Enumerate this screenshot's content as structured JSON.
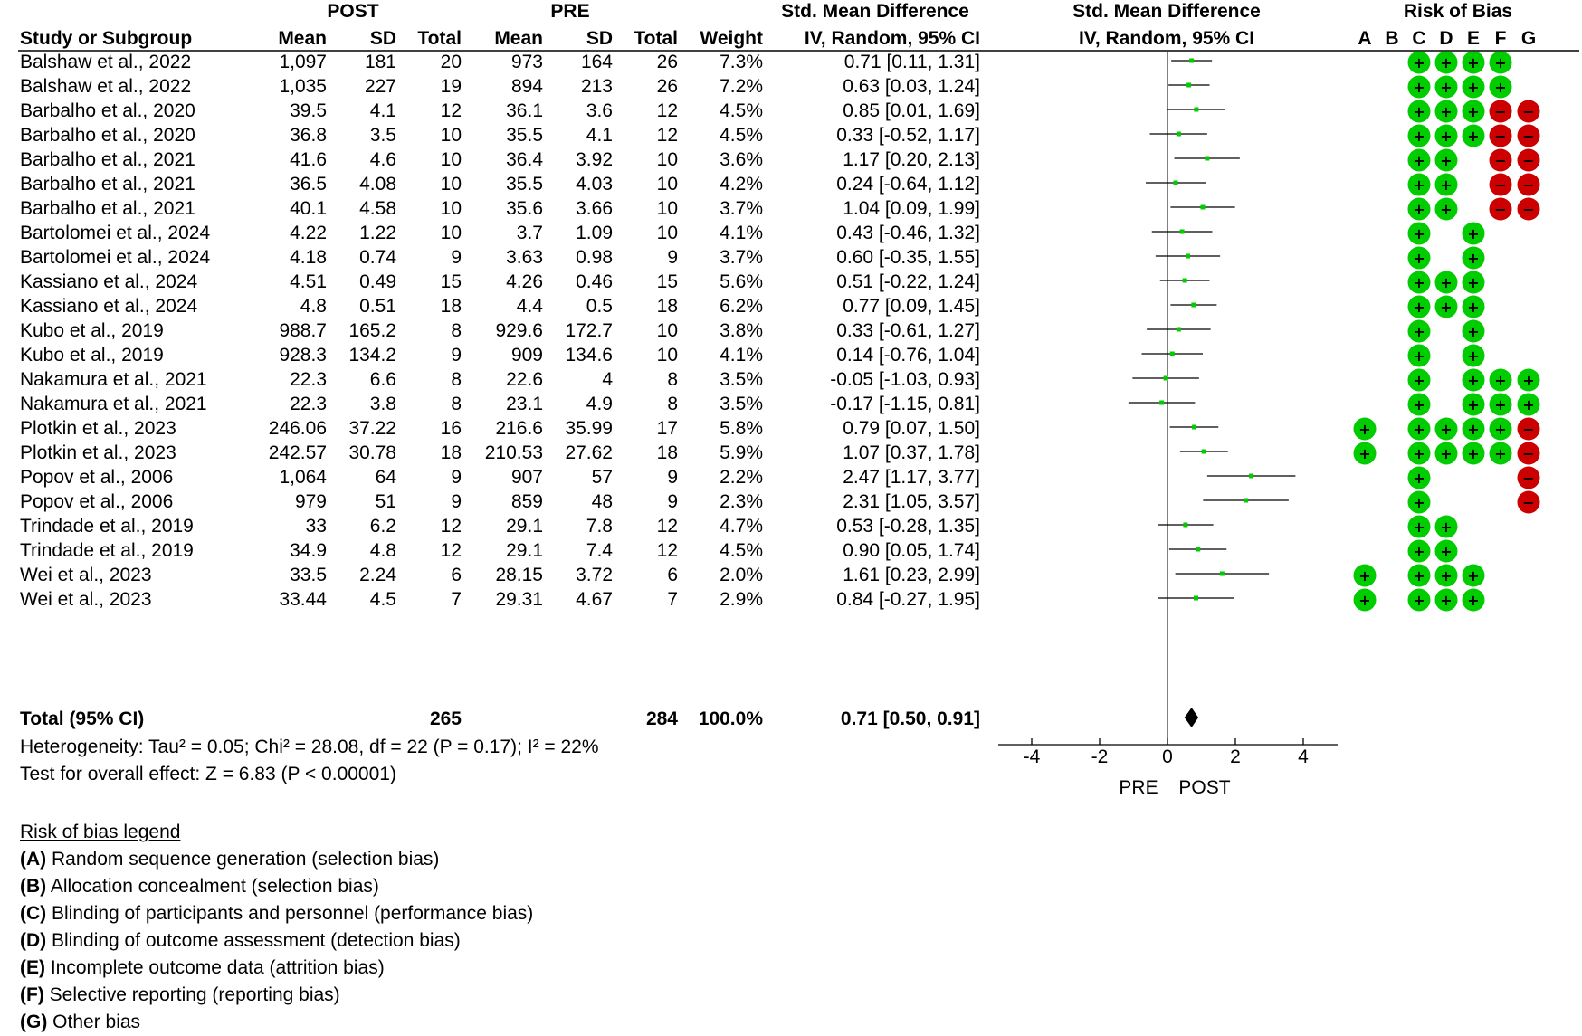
{
  "header": {
    "post_group": "POST",
    "pre_group": "PRE",
    "smd_group": "Std. Mean Difference",
    "smd_sub": "IV, Random, 95% CI",
    "plot_group": "Std. Mean Difference",
    "plot_sub": "IV, Random, 95% CI",
    "rob_group": "Risk of Bias",
    "study": "Study or Subgroup",
    "mean": "Mean",
    "sd": "SD",
    "total": "Total",
    "weight": "Weight"
  },
  "rob_letters": [
    "A",
    "B",
    "C",
    "D",
    "E",
    "F",
    "G"
  ],
  "rows": [
    {
      "study": "Balshaw et al., 2022",
      "post_mean": "1,097",
      "post_sd": "181",
      "post_total": "20",
      "pre_mean": "973",
      "pre_sd": "164",
      "pre_total": "26",
      "weight": "7.3%",
      "ci_text": "0.71 [0.11, 1.31]",
      "rob": [
        "",
        "",
        "+",
        "+",
        "+",
        "+",
        ""
      ]
    },
    {
      "study": "Balshaw et al., 2022",
      "post_mean": "1,035",
      "post_sd": "227",
      "post_total": "19",
      "pre_mean": "894",
      "pre_sd": "213",
      "pre_total": "26",
      "weight": "7.2%",
      "ci_text": "0.63 [0.03, 1.24]",
      "rob": [
        "",
        "",
        "+",
        "+",
        "+",
        "+",
        ""
      ]
    },
    {
      "study": "Barbalho et al., 2020",
      "post_mean": "39.5",
      "post_sd": "4.1",
      "post_total": "12",
      "pre_mean": "36.1",
      "pre_sd": "3.6",
      "pre_total": "12",
      "weight": "4.5%",
      "ci_text": "0.85 [0.01, 1.69]",
      "rob": [
        "",
        "",
        "+",
        "+",
        "+",
        "-",
        "-"
      ]
    },
    {
      "study": "Barbalho et al., 2020",
      "post_mean": "36.8",
      "post_sd": "3.5",
      "post_total": "10",
      "pre_mean": "35.5",
      "pre_sd": "4.1",
      "pre_total": "12",
      "weight": "4.5%",
      "ci_text": "0.33 [-0.52, 1.17]",
      "rob": [
        "",
        "",
        "+",
        "+",
        "+",
        "-",
        "-"
      ]
    },
    {
      "study": "Barbalho et al., 2021",
      "post_mean": "41.6",
      "post_sd": "4.6",
      "post_total": "10",
      "pre_mean": "36.4",
      "pre_sd": "3.92",
      "pre_total": "10",
      "weight": "3.6%",
      "ci_text": "1.17 [0.20, 2.13]",
      "rob": [
        "",
        "",
        "+",
        "+",
        "",
        "-",
        "-"
      ]
    },
    {
      "study": "Barbalho et al., 2021",
      "post_mean": "36.5",
      "post_sd": "4.08",
      "post_total": "10",
      "pre_mean": "35.5",
      "pre_sd": "4.03",
      "pre_total": "10",
      "weight": "4.2%",
      "ci_text": "0.24 [-0.64, 1.12]",
      "rob": [
        "",
        "",
        "+",
        "+",
        "",
        "-",
        "-"
      ]
    },
    {
      "study": "Barbalho et al., 2021",
      "post_mean": "40.1",
      "post_sd": "4.58",
      "post_total": "10",
      "pre_mean": "35.6",
      "pre_sd": "3.66",
      "pre_total": "10",
      "weight": "3.7%",
      "ci_text": "1.04 [0.09, 1.99]",
      "rob": [
        "",
        "",
        "+",
        "+",
        "",
        "-",
        "-"
      ]
    },
    {
      "study": "Bartolomei et al., 2024",
      "post_mean": "4.22",
      "post_sd": "1.22",
      "post_total": "10",
      "pre_mean": "3.7",
      "pre_sd": "1.09",
      "pre_total": "10",
      "weight": "4.1%",
      "ci_text": "0.43 [-0.46, 1.32]",
      "rob": [
        "",
        "",
        "+",
        "",
        "+",
        "",
        ""
      ]
    },
    {
      "study": "Bartolomei et al., 2024",
      "post_mean": "4.18",
      "post_sd": "0.74",
      "post_total": "9",
      "pre_mean": "3.63",
      "pre_sd": "0.98",
      "pre_total": "9",
      "weight": "3.7%",
      "ci_text": "0.60 [-0.35, 1.55]",
      "rob": [
        "",
        "",
        "+",
        "",
        "+",
        "",
        ""
      ]
    },
    {
      "study": "Kassiano et al., 2024",
      "post_mean": "4.51",
      "post_sd": "0.49",
      "post_total": "15",
      "pre_mean": "4.26",
      "pre_sd": "0.46",
      "pre_total": "15",
      "weight": "5.6%",
      "ci_text": "0.51 [-0.22, 1.24]",
      "rob": [
        "",
        "",
        "+",
        "+",
        "+",
        "",
        ""
      ]
    },
    {
      "study": "Kassiano et al., 2024",
      "post_mean": "4.8",
      "post_sd": "0.51",
      "post_total": "18",
      "pre_mean": "4.4",
      "pre_sd": "0.5",
      "pre_total": "18",
      "weight": "6.2%",
      "ci_text": "0.77 [0.09, 1.45]",
      "rob": [
        "",
        "",
        "+",
        "+",
        "+",
        "",
        ""
      ]
    },
    {
      "study": "Kubo et al., 2019",
      "post_mean": "988.7",
      "post_sd": "165.2",
      "post_total": "8",
      "pre_mean": "929.6",
      "pre_sd": "172.7",
      "pre_total": "10",
      "weight": "3.8%",
      "ci_text": "0.33 [-0.61, 1.27]",
      "rob": [
        "",
        "",
        "+",
        "",
        "+",
        "",
        ""
      ]
    },
    {
      "study": "Kubo et al., 2019",
      "post_mean": "928.3",
      "post_sd": "134.2",
      "post_total": "9",
      "pre_mean": "909",
      "pre_sd": "134.6",
      "pre_total": "10",
      "weight": "4.1%",
      "ci_text": "0.14 [-0.76, 1.04]",
      "rob": [
        "",
        "",
        "+",
        "",
        "+",
        "",
        ""
      ]
    },
    {
      "study": "Nakamura et al., 2021",
      "post_mean": "22.3",
      "post_sd": "6.6",
      "post_total": "8",
      "pre_mean": "22.6",
      "pre_sd": "4",
      "pre_total": "8",
      "weight": "3.5%",
      "ci_text": "-0.05 [-1.03, 0.93]",
      "rob": [
        "",
        "",
        "+",
        "",
        "+",
        "+",
        "+"
      ]
    },
    {
      "study": "Nakamura et al., 2021",
      "post_mean": "22.3",
      "post_sd": "3.8",
      "post_total": "8",
      "pre_mean": "23.1",
      "pre_sd": "4.9",
      "pre_total": "8",
      "weight": "3.5%",
      "ci_text": "-0.17 [-1.15, 0.81]",
      "rob": [
        "",
        "",
        "+",
        "",
        "+",
        "+",
        "+"
      ]
    },
    {
      "study": "Plotkin et al., 2023",
      "post_mean": "246.06",
      "post_sd": "37.22",
      "post_total": "16",
      "pre_mean": "216.6",
      "pre_sd": "35.99",
      "pre_total": "17",
      "weight": "5.8%",
      "ci_text": "0.79 [0.07, 1.50]",
      "rob": [
        "+",
        "",
        "+",
        "+",
        "+",
        "+",
        "-"
      ]
    },
    {
      "study": "Plotkin et al., 2023",
      "post_mean": "242.57",
      "post_sd": "30.78",
      "post_total": "18",
      "pre_mean": "210.53",
      "pre_sd": "27.62",
      "pre_total": "18",
      "weight": "5.9%",
      "ci_text": "1.07 [0.37, 1.78]",
      "rob": [
        "+",
        "",
        "+",
        "+",
        "+",
        "+",
        "-"
      ]
    },
    {
      "study": "Popov et al., 2006",
      "post_mean": "1,064",
      "post_sd": "64",
      "post_total": "9",
      "pre_mean": "907",
      "pre_sd": "57",
      "pre_total": "9",
      "weight": "2.2%",
      "ci_text": "2.47 [1.17, 3.77]",
      "rob": [
        "",
        "",
        "+",
        "",
        "",
        "",
        "-"
      ]
    },
    {
      "study": "Popov et al., 2006",
      "post_mean": "979",
      "post_sd": "51",
      "post_total": "9",
      "pre_mean": "859",
      "pre_sd": "48",
      "pre_total": "9",
      "weight": "2.3%",
      "ci_text": "2.31 [1.05, 3.57]",
      "rob": [
        "",
        "",
        "+",
        "",
        "",
        "",
        "-"
      ]
    },
    {
      "study": "Trindade et al., 2019",
      "post_mean": "33",
      "post_sd": "6.2",
      "post_total": "12",
      "pre_mean": "29.1",
      "pre_sd": "7.8",
      "pre_total": "12",
      "weight": "4.7%",
      "ci_text": "0.53 [-0.28, 1.35]",
      "rob": [
        "",
        "",
        "+",
        "+",
        "",
        "",
        ""
      ]
    },
    {
      "study": "Trindade et al., 2019",
      "post_mean": "34.9",
      "post_sd": "4.8",
      "post_total": "12",
      "pre_mean": "29.1",
      "pre_sd": "7.4",
      "pre_total": "12",
      "weight": "4.5%",
      "ci_text": "0.90 [0.05, 1.74]",
      "rob": [
        "",
        "",
        "+",
        "+",
        "",
        "",
        ""
      ]
    },
    {
      "study": "Wei et al., 2023",
      "post_mean": "33.5",
      "post_sd": "2.24",
      "post_total": "6",
      "pre_mean": "28.15",
      "pre_sd": "3.72",
      "pre_total": "6",
      "weight": "2.0%",
      "ci_text": "1.61 [0.23, 2.99]",
      "rob": [
        "+",
        "",
        "+",
        "+",
        "+",
        "",
        ""
      ]
    },
    {
      "study": "Wei et al., 2023",
      "post_mean": "33.44",
      "post_sd": "4.5",
      "post_total": "7",
      "pre_mean": "29.31",
      "pre_sd": "4.67",
      "pre_total": "7",
      "weight": "2.9%",
      "ci_text": "0.84 [-0.27, 1.95]",
      "rob": [
        "+",
        "",
        "+",
        "+",
        "+",
        "",
        ""
      ]
    }
  ],
  "total": {
    "label": "Total (95% CI)",
    "post_total": "265",
    "pre_total": "284",
    "weight": "100.0%",
    "ci_text": "0.71 [0.50, 0.91]"
  },
  "heterogeneity": "Heterogeneity: Tau² = 0.05; Chi² = 28.08, df = 22 (P = 0.17); I² = 22%",
  "overall_effect": "Test for overall effect: Z = 6.83 (P < 0.00001)",
  "axis": {
    "ticks": [
      "-4",
      "-2",
      "0",
      "2",
      "4"
    ],
    "left_label": "PRE",
    "right_label": "POST"
  },
  "legend": {
    "title": "Risk of bias legend",
    "items": [
      {
        "letter": "(A)",
        "text": "Random sequence generation (selection bias)"
      },
      {
        "letter": "(B)",
        "text": "Allocation concealment (selection bias)"
      },
      {
        "letter": "(C)",
        "text": "Blinding of participants and personnel (performance bias)"
      },
      {
        "letter": "(D)",
        "text": "Blinding of outcome assessment (detection bias)"
      },
      {
        "letter": "(E)",
        "text": "Incomplete outcome data (attrition bias)"
      },
      {
        "letter": "(F)",
        "text": "Selective reporting (reporting bias)"
      },
      {
        "letter": "(G)",
        "text": "Other bias"
      }
    ]
  },
  "colors": {
    "low_risk": "#00cc00",
    "high_risk": "#cc0000",
    "point": "#00cc00",
    "line": "#000000"
  },
  "chart_data": {
    "type": "forest",
    "title": "Std. Mean Difference IV, Random, 95% CI",
    "xlabel": "PRE  POST",
    "xlim": [
      -5,
      5
    ],
    "xticks": [
      -4,
      -2,
      0,
      2,
      4
    ],
    "series": [
      {
        "name": "Balshaw et al., 2022",
        "est": 0.71,
        "lo": 0.11,
        "hi": 1.31,
        "weight": 7.3
      },
      {
        "name": "Balshaw et al., 2022",
        "est": 0.63,
        "lo": 0.03,
        "hi": 1.24,
        "weight": 7.2
      },
      {
        "name": "Barbalho et al., 2020",
        "est": 0.85,
        "lo": 0.01,
        "hi": 1.69,
        "weight": 4.5
      },
      {
        "name": "Barbalho et al., 2020",
        "est": 0.33,
        "lo": -0.52,
        "hi": 1.17,
        "weight": 4.5
      },
      {
        "name": "Barbalho et al., 2021",
        "est": 1.17,
        "lo": 0.2,
        "hi": 2.13,
        "weight": 3.6
      },
      {
        "name": "Barbalho et al., 2021",
        "est": 0.24,
        "lo": -0.64,
        "hi": 1.12,
        "weight": 4.2
      },
      {
        "name": "Barbalho et al., 2021",
        "est": 1.04,
        "lo": 0.09,
        "hi": 1.99,
        "weight": 3.7
      },
      {
        "name": "Bartolomei et al., 2024",
        "est": 0.43,
        "lo": -0.46,
        "hi": 1.32,
        "weight": 4.1
      },
      {
        "name": "Bartolomei et al., 2024",
        "est": 0.6,
        "lo": -0.35,
        "hi": 1.55,
        "weight": 3.7
      },
      {
        "name": "Kassiano et al., 2024",
        "est": 0.51,
        "lo": -0.22,
        "hi": 1.24,
        "weight": 5.6
      },
      {
        "name": "Kassiano et al., 2024",
        "est": 0.77,
        "lo": 0.09,
        "hi": 1.45,
        "weight": 6.2
      },
      {
        "name": "Kubo et al., 2019",
        "est": 0.33,
        "lo": -0.61,
        "hi": 1.27,
        "weight": 3.8
      },
      {
        "name": "Kubo et al., 2019",
        "est": 0.14,
        "lo": -0.76,
        "hi": 1.04,
        "weight": 4.1
      },
      {
        "name": "Nakamura et al., 2021",
        "est": -0.05,
        "lo": -1.03,
        "hi": 0.93,
        "weight": 3.5
      },
      {
        "name": "Nakamura et al., 2021",
        "est": -0.17,
        "lo": -1.15,
        "hi": 0.81,
        "weight": 3.5
      },
      {
        "name": "Plotkin et al., 2023",
        "est": 0.79,
        "lo": 0.07,
        "hi": 1.5,
        "weight": 5.8
      },
      {
        "name": "Plotkin et al., 2023",
        "est": 1.07,
        "lo": 0.37,
        "hi": 1.78,
        "weight": 5.9
      },
      {
        "name": "Popov et al., 2006",
        "est": 2.47,
        "lo": 1.17,
        "hi": 3.77,
        "weight": 2.2
      },
      {
        "name": "Popov et al., 2006",
        "est": 2.31,
        "lo": 1.05,
        "hi": 3.57,
        "weight": 2.3
      },
      {
        "name": "Trindade et al., 2019",
        "est": 0.53,
        "lo": -0.28,
        "hi": 1.35,
        "weight": 4.7
      },
      {
        "name": "Trindade et al., 2019",
        "est": 0.9,
        "lo": 0.05,
        "hi": 1.74,
        "weight": 4.5
      },
      {
        "name": "Wei et al., 2023",
        "est": 1.61,
        "lo": 0.23,
        "hi": 2.99,
        "weight": 2.0
      },
      {
        "name": "Wei et al., 2023",
        "est": 0.84,
        "lo": -0.27,
        "hi": 1.95,
        "weight": 2.9
      }
    ],
    "summary": {
      "est": 0.71,
      "lo": 0.5,
      "hi": 0.91
    }
  }
}
